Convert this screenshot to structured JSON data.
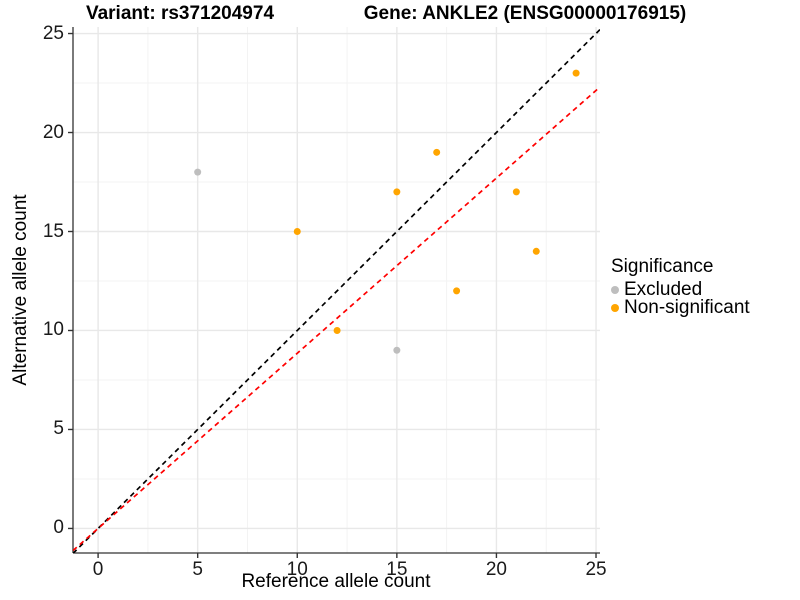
{
  "chart_data": {
    "type": "scatter",
    "title_left": "Variant: rs371204974",
    "title_right": "Gene: ANKLE2 (ENSG00000176915)",
    "xlabel": "Reference allele count",
    "ylabel": "Alternative allele count",
    "xlim": [
      -1.26,
      25.2
    ],
    "ylim": [
      -1.24,
      25.33
    ],
    "xticks": [
      0,
      5,
      10,
      15,
      20,
      25
    ],
    "yticks": [
      0,
      5,
      10,
      15,
      20,
      25
    ],
    "minor_xticks": [
      2.5,
      7.5,
      12.5,
      17.5,
      22.5
    ],
    "minor_yticks": [
      2.5,
      7.5,
      12.5,
      17.5,
      22.5
    ],
    "grid": true,
    "legend": {
      "title": "Significance",
      "position": "right",
      "items": [
        {
          "label": "Excluded",
          "color": "#BEBEBE"
        },
        {
          "label": "Non-significant",
          "color": "#FFA500"
        }
      ]
    },
    "series": [
      {
        "name": "Excluded",
        "color": "#BEBEBE",
        "points": [
          [
            5,
            18
          ],
          [
            15,
            9
          ]
        ]
      },
      {
        "name": "Non-significant",
        "color": "#FFA500",
        "points": [
          [
            10,
            15
          ],
          [
            12,
            10
          ],
          [
            15,
            17
          ],
          [
            17,
            19
          ],
          [
            18,
            12
          ],
          [
            21,
            17
          ],
          [
            22,
            14
          ],
          [
            24,
            23
          ]
        ]
      }
    ],
    "lines": [
      {
        "name": "identity",
        "style": "dashed",
        "color": "#000000",
        "slope": 1,
        "intercept": 0
      },
      {
        "name": "fit",
        "style": "dashed",
        "color": "#FF0000",
        "slope": 0.885,
        "intercept": 0
      }
    ],
    "colors": {
      "background": "#FFFFFF",
      "axis": "#333333",
      "tick": "#333333",
      "grid_major": "#E8E8E8",
      "grid_minor": "#F3F3F3"
    }
  }
}
